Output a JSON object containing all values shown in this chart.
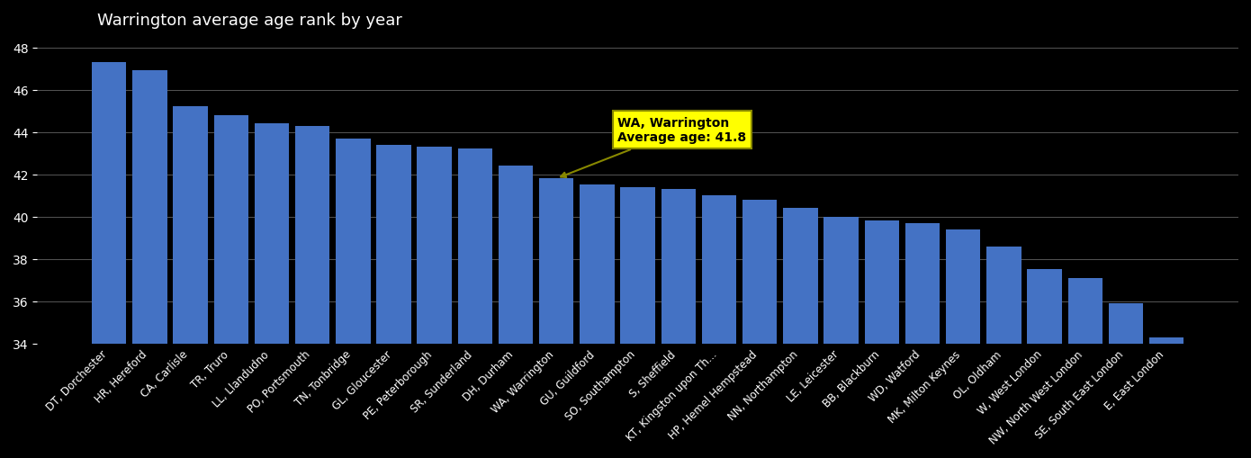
{
  "categories": [
    "DT, Dorchester",
    "HR, Hereford",
    "CA, Carlisle",
    "TR, Truro",
    "LL, Llandudno",
    "PO, Portsmouth",
    "TN, Tonbridge",
    "GL, Gloucester",
    "PE, Peterborough",
    "SR, Sunderland",
    "DH, Durham",
    "WA, Warrington",
    "GU, Guildford",
    "SO, Southampton",
    "S, Sheffield",
    "KT, Kingston upon Th...",
    "HP, Hemel Hempstead",
    "NN, Northampton",
    "LE, Leicester",
    "BB, Blackburn",
    "WD, Watford",
    "MK, Milton Keynes",
    "OL, Oldham",
    "W, West London",
    "NW, North West London",
    "SE, South East London",
    "E, East London"
  ],
  "values": [
    47.3,
    46.9,
    45.2,
    44.8,
    44.4,
    44.3,
    43.7,
    43.4,
    43.3,
    43.2,
    42.4,
    41.8,
    41.5,
    41.4,
    41.3,
    41.0,
    40.8,
    40.4,
    40.0,
    39.8,
    39.7,
    39.4,
    38.6,
    37.5,
    37.1,
    35.9,
    34.3
  ],
  "bar_color": "#4472c4",
  "highlight_bar": "WA, Warrington",
  "highlight_color": "#4472c4",
  "annotation_text": "WA, Warrington\nAverage age: 41.8",
  "annotation_bg": "#ffff00",
  "background_color": "#000000",
  "text_color": "#ffffff",
  "grid_color": "#555555",
  "ylim": [
    34,
    48.5
  ],
  "yticks": [
    34,
    36,
    38,
    40,
    42,
    44,
    46,
    48
  ],
  "title": "Warrington average age rank by year"
}
